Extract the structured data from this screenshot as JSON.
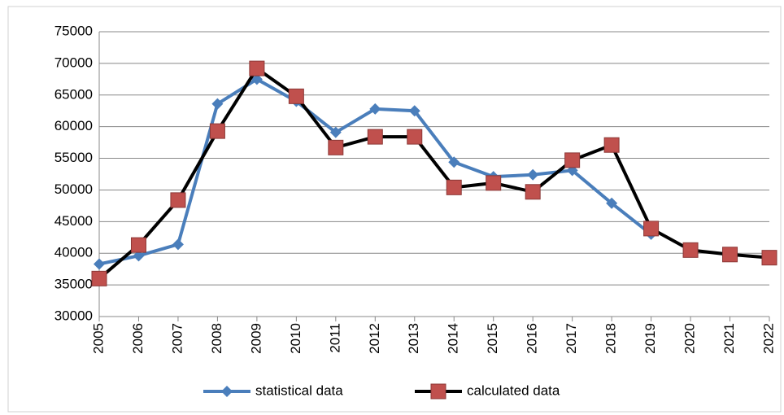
{
  "chart_data": {
    "type": "line",
    "xlim": [
      2005,
      2022
    ],
    "xticks": [
      2005,
      2006,
      2007,
      2008,
      2009,
      2010,
      2011,
      2012,
      2013,
      2014,
      2015,
      2016,
      2017,
      2018,
      2019,
      2020,
      2021,
      2022
    ],
    "ylim": [
      30000,
      75000
    ],
    "yticks": [
      30000,
      35000,
      40000,
      45000,
      50000,
      55000,
      60000,
      65000,
      70000,
      75000
    ],
    "grid": true,
    "legend": "bottom",
    "series": [
      {
        "name": "statistical data",
        "color": "#4a7ebb",
        "marker": "diamond",
        "x": [
          2005,
          2006,
          2007,
          2008,
          2009,
          2010,
          2011,
          2012,
          2013,
          2014,
          2015,
          2016,
          2017,
          2018,
          2019
        ],
        "values": [
          38300,
          39600,
          41400,
          63600,
          67500,
          64000,
          59100,
          62800,
          62500,
          54400,
          52100,
          52400,
          53100,
          47900,
          43000
        ]
      },
      {
        "name": "calculated data",
        "color": "#000000",
        "marker_color": "#c0504d",
        "marker": "square",
        "x": [
          2005,
          2006,
          2007,
          2008,
          2009,
          2010,
          2011,
          2012,
          2013,
          2014,
          2015,
          2016,
          2017,
          2018,
          2019,
          2020,
          2021,
          2022
        ],
        "values": [
          36000,
          41300,
          48400,
          59300,
          69200,
          64800,
          56700,
          58400,
          58400,
          50400,
          51100,
          49700,
          54700,
          57100,
          43900,
          40500,
          39800,
          39300
        ]
      }
    ]
  }
}
